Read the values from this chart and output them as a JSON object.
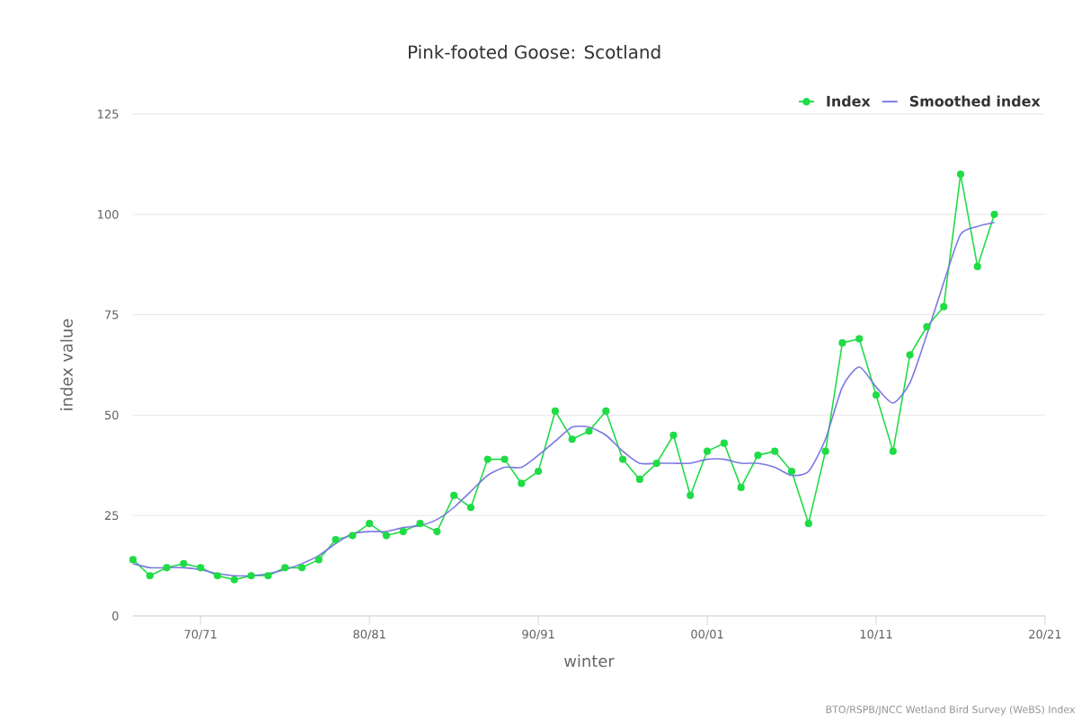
{
  "chart_data": {
    "type": "line",
    "title": "Pink-footed Goose: Scotland",
    "xlabel": "winter",
    "ylabel": "index value",
    "annotations": [
      "BTO/RSPB/JNCC Wetland Bird Survey (WeBS) Index"
    ],
    "categories": [
      null,
      null,
      null,
      null,
      "70/71",
      null,
      null,
      null,
      null,
      null,
      null,
      null,
      null,
      null,
      "80/81",
      null,
      null,
      null,
      null,
      null,
      null,
      null,
      null,
      null,
      "90/91",
      null,
      null,
      null,
      null,
      null,
      null,
      null,
      null,
      null,
      "00/01",
      null,
      null,
      null,
      null,
      null,
      null,
      null,
      null,
      null,
      "10/11",
      null,
      null,
      null,
      null,
      null,
      null,
      null,
      null,
      null,
      "20/21"
    ],
    "series": [
      {
        "name": "Index",
        "color": "#1fdc45",
        "marker": "circle",
        "values": [
          14,
          10,
          12,
          13,
          12,
          10,
          9,
          10,
          10,
          12,
          12,
          14,
          19,
          20,
          23,
          20,
          21,
          23,
          21,
          30,
          27,
          39,
          39,
          33,
          36,
          51,
          44,
          46,
          51,
          39,
          34,
          38,
          45,
          30,
          41,
          43,
          32,
          40,
          41,
          36,
          23,
          41,
          68,
          69,
          55,
          41,
          65,
          72,
          77,
          110,
          87,
          100,
          null,
          null,
          null
        ]
      },
      {
        "name": "Smoothed index",
        "color": "#7b78e0",
        "marker": "none",
        "values": [
          13,
          12,
          12,
          12,
          11.5,
          10.5,
          10,
          10,
          10.5,
          11.5,
          13,
          15,
          18,
          20.5,
          21,
          21,
          22,
          22.5,
          24,
          27,
          31,
          35,
          37,
          37,
          40,
          43.5,
          47,
          47,
          45,
          41,
          38,
          38,
          38,
          38,
          39,
          39,
          38,
          38,
          37,
          35,
          36,
          44,
          57,
          62,
          57,
          53,
          58,
          70,
          83,
          95,
          97,
          98,
          null,
          null,
          null
        ]
      }
    ],
    "ylim": [
      0,
      125
    ],
    "yticks": [
      0,
      25,
      50,
      75,
      100,
      125
    ],
    "grid": "y",
    "legend": "top right"
  }
}
